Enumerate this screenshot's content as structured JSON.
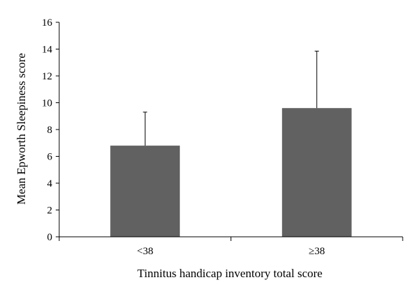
{
  "chart_data": {
    "type": "bar",
    "categories": [
      "<38",
      "≥38"
    ],
    "values": [
      6.8,
      9.6
    ],
    "error_upper": [
      9.3,
      13.85
    ],
    "xlabel": "Tinnitus handicap inventory total score",
    "ylabel": "Mean Epworth Sleepiness score",
    "ylim": [
      0,
      16
    ],
    "yticks": [
      "0",
      "2",
      "4",
      "6",
      "8",
      "10",
      "12",
      "14",
      "16"
    ],
    "grid": false,
    "bar_color": "#616161"
  }
}
